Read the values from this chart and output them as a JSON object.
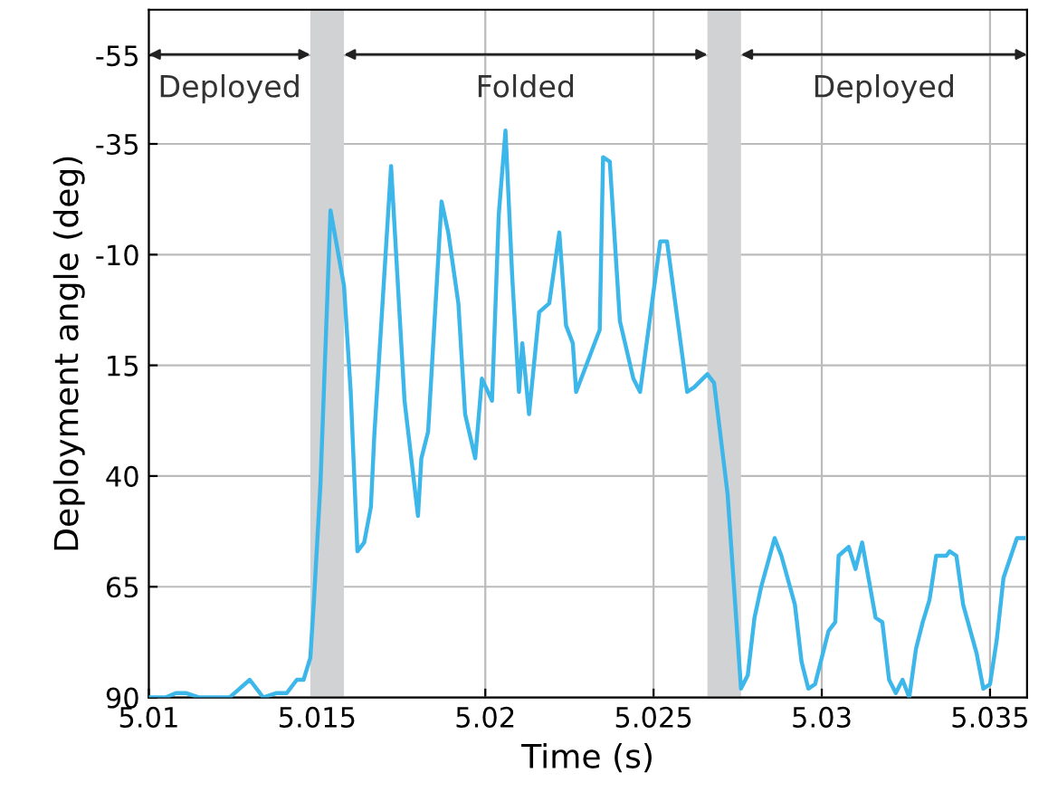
{
  "chart_data": {
    "type": "line",
    "xlabel": "Time (s)",
    "ylabel": "Deployment angle (deg)",
    "xlim": [
      5.01,
      5.0361
    ],
    "xticks": [
      5.01,
      5.015,
      5.02,
      5.025,
      5.03,
      5.035
    ],
    "ylim": [
      90,
      -65.3
    ],
    "yticks": [
      -55,
      -35,
      -10,
      15,
      40,
      65,
      90
    ],
    "grid": true,
    "bands": [
      {
        "axis": "x",
        "from": 5.0148,
        "to": 5.0158,
        "color": "#d1d2d4"
      },
      {
        "axis": "x",
        "from": 5.0266,
        "to": 5.0276,
        "color": "#d1d2d4"
      }
    ],
    "annotations": [
      "Deployed",
      "Folded",
      "Deployed"
    ],
    "series": [
      {
        "color": "#3db7e9",
        "x": [
          5.01,
          5.0105,
          5.0108,
          5.0111,
          5.0115,
          5.0119,
          5.0122,
          5.0124,
          5.013,
          5.0134,
          5.0138,
          5.0141,
          5.0144,
          5.0146,
          5.0148,
          5.0149,
          5.0151,
          5.0154,
          5.0158,
          5.016,
          5.0162,
          5.0164,
          5.0166,
          5.0167,
          5.0172,
          5.0176,
          5.018,
          5.0181,
          5.0183,
          5.0187,
          5.0189,
          5.0192,
          5.0194,
          5.0197,
          5.0199,
          5.0202,
          5.0204,
          5.0206,
          5.0208,
          5.021,
          5.0211,
          5.0213,
          5.0216,
          5.0219,
          5.0222,
          5.0224,
          5.0226,
          5.0227,
          5.0232,
          5.0234,
          5.0235,
          5.0237,
          5.024,
          5.0244,
          5.0246,
          5.0252,
          5.0254,
          5.026,
          5.0262,
          5.0266,
          5.0268,
          5.0272,
          5.0276,
          5.0278,
          5.028,
          5.0282,
          5.0286,
          5.0288,
          5.0292,
          5.0294,
          5.0296,
          5.0298,
          5.0302,
          5.0304,
          5.0305,
          5.0308,
          5.031,
          5.0312,
          5.0316,
          5.0318,
          5.032,
          5.0322,
          5.0324,
          5.0326,
          5.0328,
          5.033,
          5.0332,
          5.0334,
          5.0337,
          5.0338,
          5.034,
          5.0342,
          5.0346,
          5.0348,
          5.035,
          5.0352,
          5.0354,
          5.0358,
          5.036
        ],
        "values": [
          90,
          90,
          89,
          89,
          90,
          90,
          90,
          90,
          86,
          90,
          89,
          89,
          86,
          86,
          81,
          69,
          42,
          -20,
          -3,
          21,
          57,
          55,
          47,
          31,
          -30,
          23,
          49,
          36,
          30,
          -22,
          -15,
          1,
          26,
          36,
          18,
          23,
          -19,
          -38,
          -5,
          21,
          10,
          26,
          3,
          1,
          -15,
          6,
          10,
          21,
          11,
          7,
          -32,
          -31,
          5,
          18,
          21,
          -13,
          -13,
          21,
          20,
          17,
          19,
          44,
          88,
          85,
          72,
          65,
          54,
          58,
          69,
          82,
          88,
          87,
          75,
          73,
          58,
          56,
          61,
          55,
          72,
          73,
          86,
          89,
          86,
          90,
          79,
          73,
          68,
          58,
          58,
          57,
          58,
          69,
          80,
          88,
          87,
          77,
          63,
          54,
          54
        ]
      }
    ]
  }
}
